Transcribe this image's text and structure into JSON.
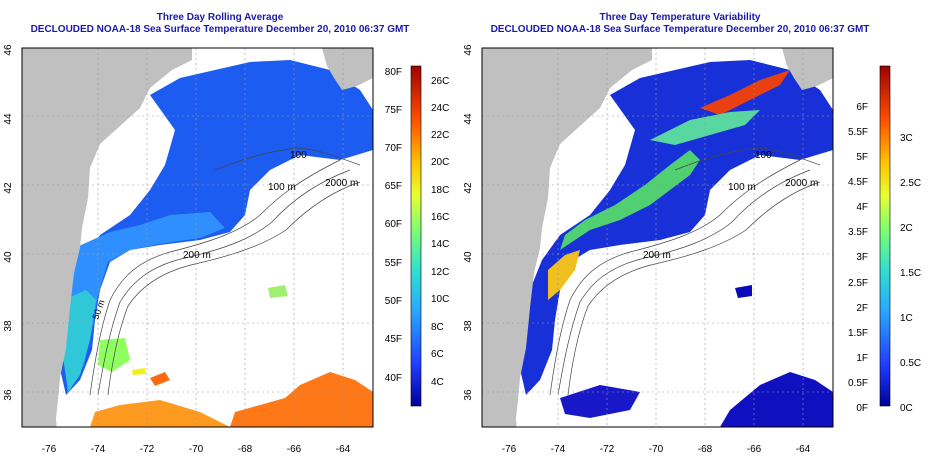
{
  "left_panel": {
    "title_line1": "Three Day Rolling Average",
    "title_line2": "DECLOUDED NOAA-18 Sea Surface Temperature December 20, 2010 06:37 GMT",
    "colorbar_f_labels": [
      "80F",
      "75F",
      "70F",
      "65F",
      "60F",
      "55F",
      "50F",
      "45F",
      "40F"
    ],
    "colorbar_c_labels": [
      "26C",
      "24C",
      "22C",
      "20C",
      "18C",
      "16C",
      "14C",
      "12C",
      "10C",
      "8C",
      "6C",
      "4C"
    ]
  },
  "right_panel": {
    "title_line1": "Three Day Temperature Variability",
    "title_line2": "DECLOUDED NOAA-18 Sea Surface Temperature December 20, 2010 06:37 GMT",
    "colorbar_f_labels": [
      "6F",
      "5.5F",
      "5F",
      "4.5F",
      "4F",
      "3.5F",
      "3F",
      "2.5F",
      "2F",
      "1.5F",
      "1F",
      "0.5F",
      "0F"
    ],
    "colorbar_c_labels": [
      "3C",
      "2.5C",
      "2C",
      "1.5C",
      "1C",
      "0.5C",
      "0C"
    ]
  },
  "axes": {
    "lon_ticks": [
      "-76",
      "-74",
      "-72",
      "-70",
      "-68",
      "-66",
      "-64"
    ],
    "lat_ticks": [
      "46",
      "44",
      "42",
      "40",
      "38",
      "36"
    ]
  },
  "contour_labels": {
    "c100": "100",
    "c200": "200 m",
    "c2000": "2000 m",
    "c50": "50 m",
    "c100m": "100 m"
  },
  "colors": {
    "land": "#c0c0c0",
    "ocean_nodata": "#ffffff",
    "title": "#1a1aa6",
    "grid": "#9a9a9a"
  }
}
